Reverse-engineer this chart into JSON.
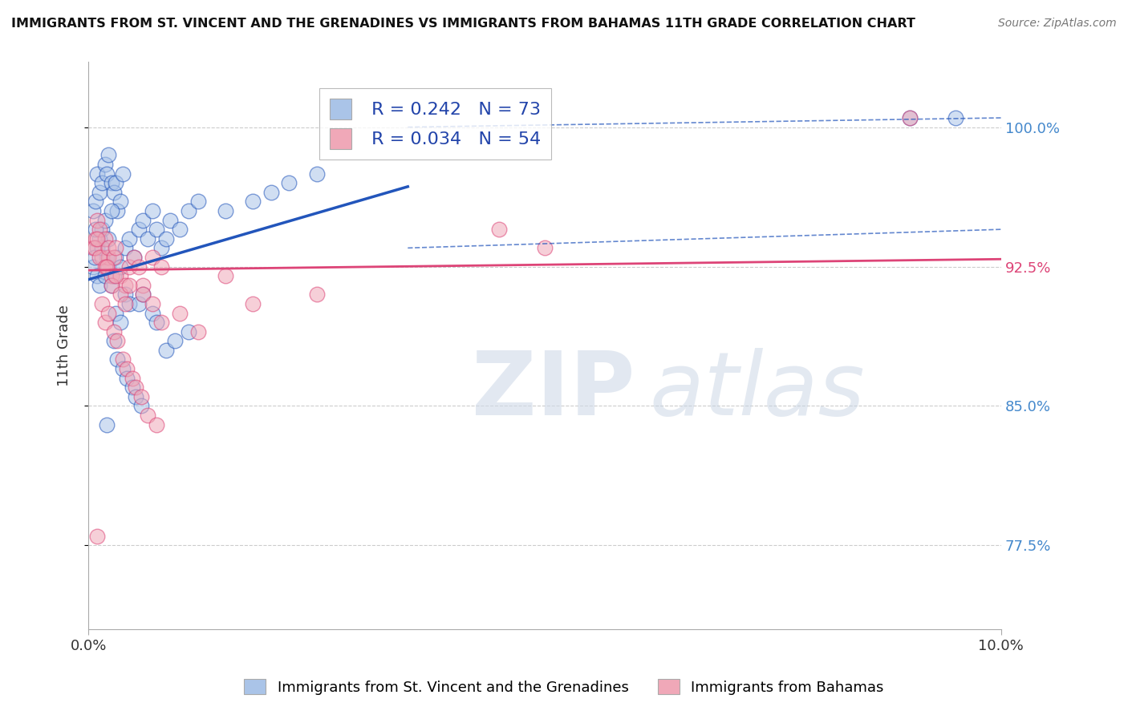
{
  "title": "IMMIGRANTS FROM ST. VINCENT AND THE GRENADINES VS IMMIGRANTS FROM BAHAMAS 11TH GRADE CORRELATION CHART",
  "source": "Source: ZipAtlas.com",
  "ylabel": "11th Grade",
  "xlim": [
    0.0,
    10.0
  ],
  "ylim": [
    73.0,
    103.5
  ],
  "yticks": [
    77.5,
    85.0,
    92.5,
    100.0
  ],
  "ytick_labels": [
    "77.5%",
    "85.0%",
    "92.5%",
    "100.0%"
  ],
  "xticks": [
    0.0,
    10.0
  ],
  "xtick_labels": [
    "0.0%",
    "10.0%"
  ],
  "blue_R": 0.242,
  "blue_N": 73,
  "pink_R": 0.034,
  "pink_N": 54,
  "blue_color": "#aac4e8",
  "pink_color": "#f0a8b8",
  "blue_line_color": "#2255bb",
  "pink_line_color": "#dd4477",
  "blue_tick_color": "#4488cc",
  "pink_tick_color": "#dd4477",
  "legend_label_blue": "Immigrants from St. Vincent and the Grenadines",
  "legend_label_pink": "Immigrants from Bahamas",
  "watermark_zip": "ZIP",
  "watermark_atlas": "atlas",
  "blue_scatter_x": [
    0.05,
    0.08,
    0.1,
    0.12,
    0.15,
    0.18,
    0.2,
    0.22,
    0.25,
    0.28,
    0.3,
    0.32,
    0.35,
    0.38,
    0.1,
    0.12,
    0.15,
    0.08,
    0.18,
    0.2,
    0.22,
    0.25,
    0.05,
    0.07,
    0.1,
    0.12,
    0.15,
    0.18,
    0.22,
    0.25,
    0.28,
    0.3,
    0.35,
    0.4,
    0.45,
    0.5,
    0.55,
    0.6,
    0.65,
    0.7,
    0.75,
    0.8,
    0.85,
    0.9,
    1.0,
    1.1,
    1.2,
    1.5,
    1.8,
    2.0,
    2.2,
    2.5,
    0.4,
    0.45,
    0.3,
    0.35,
    0.55,
    0.6,
    0.7,
    0.75,
    0.85,
    0.95,
    1.1,
    0.28,
    0.32,
    0.38,
    0.42,
    0.48,
    0.52,
    0.58,
    9.0,
    9.5,
    0.2
  ],
  "blue_scatter_y": [
    95.5,
    96.0,
    97.5,
    96.5,
    97.0,
    98.0,
    97.5,
    98.5,
    97.0,
    96.5,
    97.0,
    95.5,
    96.0,
    97.5,
    93.5,
    94.0,
    94.5,
    94.5,
    95.0,
    93.0,
    94.0,
    95.5,
    92.5,
    93.0,
    92.0,
    91.5,
    93.5,
    92.0,
    92.5,
    91.5,
    92.0,
    93.0,
    92.5,
    93.5,
    94.0,
    93.0,
    94.5,
    95.0,
    94.0,
    95.5,
    94.5,
    93.5,
    94.0,
    95.0,
    94.5,
    95.5,
    96.0,
    95.5,
    96.0,
    96.5,
    97.0,
    97.5,
    91.0,
    90.5,
    90.0,
    89.5,
    90.5,
    91.0,
    90.0,
    89.5,
    88.0,
    88.5,
    89.0,
    88.5,
    87.5,
    87.0,
    86.5,
    86.0,
    85.5,
    85.0,
    100.5,
    100.5,
    84.0
  ],
  "pink_scatter_x": [
    0.05,
    0.08,
    0.1,
    0.12,
    0.15,
    0.18,
    0.2,
    0.22,
    0.07,
    0.1,
    0.12,
    0.18,
    0.22,
    0.25,
    0.28,
    0.3,
    0.35,
    0.4,
    0.45,
    0.5,
    0.55,
    0.6,
    0.7,
    0.8,
    0.2,
    0.25,
    0.3,
    0.35,
    0.4,
    0.45,
    1.5,
    2.5,
    0.15,
    0.18,
    0.22,
    0.28,
    0.32,
    0.38,
    0.42,
    0.48,
    0.52,
    0.58,
    0.65,
    0.75,
    4.5,
    5.0,
    0.6,
    0.7,
    0.8,
    1.0,
    1.2,
    1.8,
    9.0,
    0.1
  ],
  "pink_scatter_y": [
    93.5,
    94.0,
    95.0,
    94.5,
    93.0,
    94.0,
    92.5,
    93.0,
    93.5,
    94.0,
    93.0,
    92.5,
    93.5,
    92.0,
    93.0,
    93.5,
    92.0,
    91.5,
    92.5,
    93.0,
    92.5,
    91.5,
    93.0,
    92.5,
    92.5,
    91.5,
    92.0,
    91.0,
    90.5,
    91.5,
    92.0,
    91.0,
    90.5,
    89.5,
    90.0,
    89.0,
    88.5,
    87.5,
    87.0,
    86.5,
    86.0,
    85.5,
    84.5,
    84.0,
    94.5,
    93.5,
    91.0,
    90.5,
    89.5,
    90.0,
    89.0,
    90.5,
    100.5,
    78.0
  ],
  "blue_line_x0": 0.0,
  "blue_line_y0": 91.8,
  "blue_line_x1": 3.5,
  "blue_line_y1": 96.8,
  "blue_dash_x0": 3.5,
  "blue_dash_y0_upper": 100.0,
  "blue_dash_y0_lower": 93.5,
  "blue_dash_x1": 10.0,
  "blue_dash_y1_upper": 100.5,
  "blue_dash_y1_lower": 94.5,
  "pink_line_y0": 92.3,
  "pink_line_y1": 92.9
}
